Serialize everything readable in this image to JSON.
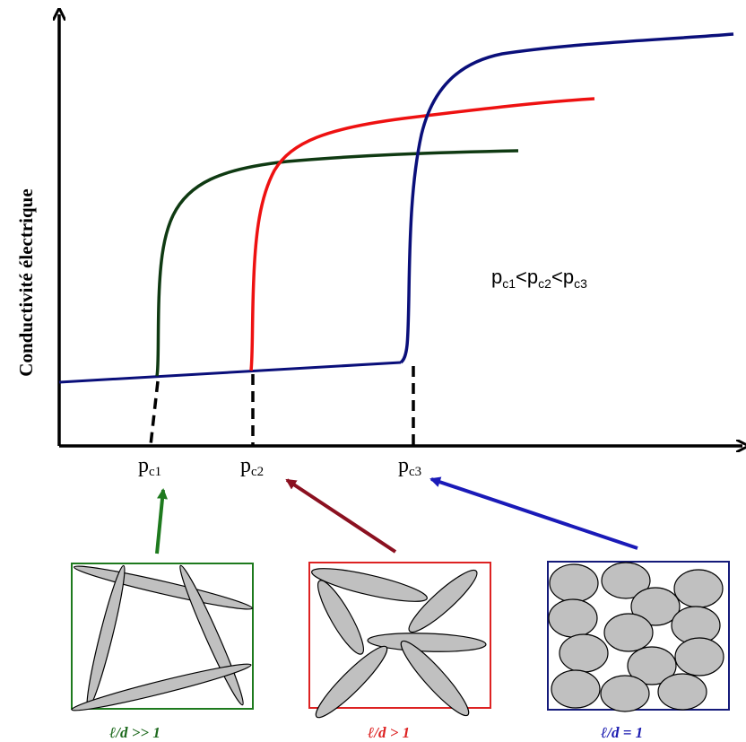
{
  "y_axis_label": "Conductivité électrique",
  "inequality": {
    "p": "p",
    "sub1": "c1",
    "sub2": "c2",
    "sub3": "c3",
    "lt": "<"
  },
  "thresholds": [
    {
      "p": "p",
      "sub": "c1"
    },
    {
      "p": "p",
      "sub": "c2"
    },
    {
      "p": "p",
      "sub": "c3"
    }
  ],
  "curves": [
    {
      "name": "green",
      "color": "#0f3a12"
    },
    {
      "name": "red",
      "color": "#ee1111"
    },
    {
      "name": "blue",
      "color": "#0a0f7a"
    }
  ],
  "arrows": [
    {
      "color": "#1e7a1e"
    },
    {
      "color": "#8b1020"
    },
    {
      "color": "#1a1ab8"
    }
  ],
  "panels": [
    {
      "label": "ℓ/d >> 1",
      "color": "#1e7a1e",
      "label_color": "#1e6a1e"
    },
    {
      "label": "ℓ/d > 1",
      "color": "#dd2222",
      "label_color": "#dd2222"
    },
    {
      "label": "ℓ/d = 1",
      "color": "#141a7a",
      "label_color": "#1a1ab0"
    }
  ],
  "particle_fill": "#c0c0c0"
}
